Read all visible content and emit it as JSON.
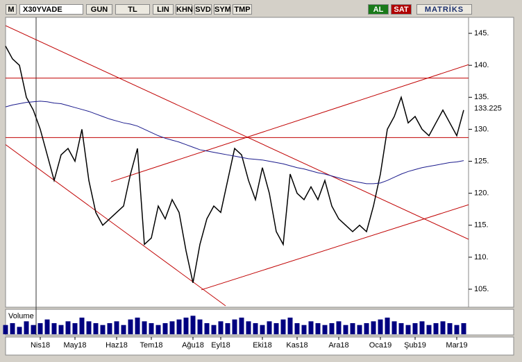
{
  "toolbar": {
    "logo": "M",
    "symbol": "X30YVADE",
    "buttons": [
      "GUN",
      "TL",
      "LIN",
      "KHN",
      "SVD",
      "SYM",
      "TMP"
    ],
    "buy": "AL",
    "sell": "SAT",
    "brand": "MATRİKS"
  },
  "chart_data": {
    "type": "line",
    "categories": [
      null,
      null,
      null,
      null,
      null,
      "Nis18",
      null,
      null,
      null,
      null,
      "May18",
      null,
      null,
      null,
      null,
      null,
      "Haz18",
      null,
      null,
      null,
      null,
      "Tem18",
      null,
      null,
      null,
      null,
      null,
      "Ağu18",
      null,
      null,
      null,
      "Eyl18",
      null,
      null,
      null,
      null,
      null,
      "Eki18",
      null,
      null,
      null,
      null,
      "Kas18",
      null,
      null,
      null,
      null,
      null,
      "Ara18",
      null,
      null,
      null,
      null,
      null,
      "Oca19",
      null,
      null,
      null,
      null,
      "Şub19",
      null,
      null,
      null,
      null,
      null,
      "Mar19",
      null
    ],
    "series": [
      {
        "name": "X30YVADE",
        "color": "#000000",
        "values": [
          143,
          141,
          140,
          135,
          133,
          130,
          126,
          122,
          126,
          127,
          125,
          130,
          122,
          117,
          115,
          116,
          117,
          118,
          123,
          127,
          112,
          113,
          118,
          116,
          119,
          117,
          111,
          106,
          112,
          116,
          118,
          117,
          122,
          127,
          126,
          122,
          119,
          124,
          120,
          114,
          112,
          123,
          120,
          119,
          121,
          119,
          122,
          118,
          116,
          115,
          114,
          115,
          114,
          118,
          123,
          130,
          132,
          135,
          131,
          132,
          130,
          129,
          131,
          133,
          131,
          129,
          133
        ]
      },
      {
        "name": "MA",
        "color": "#1a1a8c",
        "values": [
          133.5,
          133.8,
          134,
          134.2,
          134.3,
          134.4,
          134.3,
          134.1,
          134,
          133.7,
          133.4,
          133.1,
          132.8,
          132.4,
          132,
          131.6,
          131.3,
          131,
          130.8,
          130.5,
          130,
          129.5,
          129,
          128.6,
          128.3,
          128,
          127.6,
          127.2,
          126.8,
          126.6,
          126.4,
          126.2,
          126,
          125.8,
          125.6,
          125.4,
          125.3,
          125.2,
          125,
          124.8,
          124.6,
          124.3,
          124,
          123.8,
          123.5,
          123.2,
          123,
          122.7,
          122.4,
          122.1,
          121.9,
          121.7,
          121.5,
          121.5,
          121.6,
          122,
          122.5,
          123,
          123.4,
          123.7,
          124,
          124.2,
          124.4,
          124.6,
          124.8,
          124.9,
          125.1
        ]
      }
    ],
    "trend_lines": {
      "color": "#c00000",
      "lines": [
        [
          [
            0,
            146.2
          ],
          [
            66.7,
            112.8
          ]
        ],
        [
          [
            0,
            127.6
          ],
          [
            31.7,
            102.4
          ]
        ],
        [
          [
            0,
            138
          ],
          [
            66.7,
            138
          ]
        ],
        [
          [
            0,
            128.7
          ],
          [
            66.7,
            128.7
          ]
        ],
        [
          [
            15.2,
            121.8
          ],
          [
            66.7,
            140.1
          ]
        ],
        [
          [
            28.2,
            104.9
          ],
          [
            66.7,
            118.2
          ]
        ]
      ]
    },
    "last_value": 133.225,
    "ylim": [
      102.4,
      147.5
    ],
    "yticks": [
      {
        "value": 105,
        "label": "105."
      },
      {
        "value": 110,
        "label": "110."
      },
      {
        "value": 115,
        "label": "115."
      },
      {
        "value": 120,
        "label": "120."
      },
      {
        "value": 125,
        "label": "125."
      },
      {
        "value": 130,
        "label": "130."
      },
      {
        "value": 135,
        "label": "135."
      },
      {
        "value": 140,
        "label": "140."
      },
      {
        "value": 145,
        "label": "145."
      }
    ],
    "volume": {
      "label": "Volume",
      "color": "#000080",
      "values": [
        5,
        6,
        4,
        7,
        5,
        6,
        8,
        6,
        5,
        7,
        6,
        9,
        7,
        6,
        5,
        6,
        7,
        5,
        8,
        9,
        7,
        6,
        5,
        6,
        7,
        8,
        9,
        10,
        8,
        6,
        5,
        7,
        6,
        8,
        9,
        7,
        6,
        5,
        7,
        6,
        8,
        9,
        6,
        5,
        7,
        6,
        5,
        6,
        7,
        5,
        6,
        5,
        6,
        7,
        8,
        9,
        7,
        6,
        5,
        6,
        7,
        5,
        6,
        7,
        6,
        5,
        6
      ],
      "ylim": [
        0,
        12
      ]
    }
  }
}
